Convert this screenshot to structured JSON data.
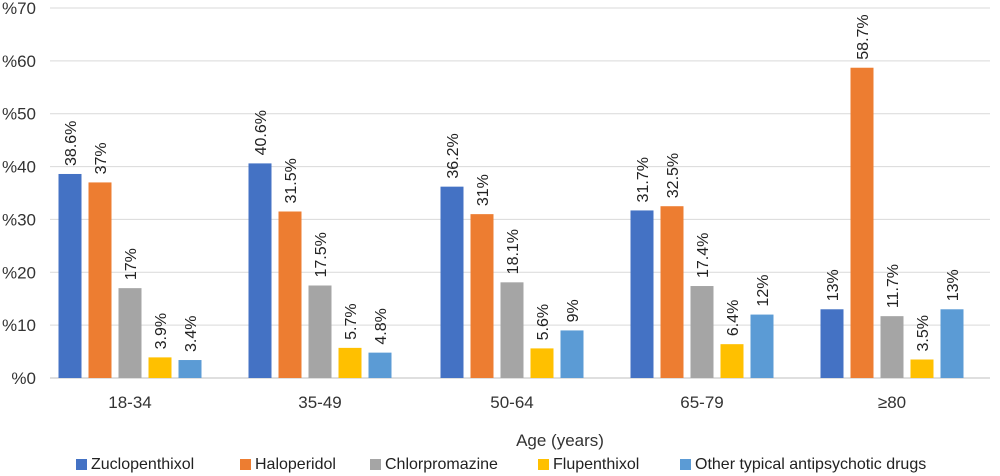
{
  "chart_data": {
    "type": "bar",
    "title": "",
    "xlabel": "Age (years)",
    "ylabel": "",
    "ylim": [
      0,
      70
    ],
    "yticks": [
      "%0",
      "%10",
      "%20",
      "%30",
      "%40",
      "%50",
      "%60",
      "%70"
    ],
    "grid": true,
    "legend_position": "bottom",
    "categories": [
      "18-34",
      "35-49",
      "50-64",
      "65-79",
      "≥80"
    ],
    "series": [
      {
        "name": "Zuclopenthixol",
        "color": "#4472C4",
        "values": [
          38.6,
          40.6,
          36.2,
          31.7,
          13
        ],
        "labels": [
          "38.6%",
          "40.6%",
          "36.2%",
          "31.7%",
          "13%"
        ]
      },
      {
        "name": "Haloperidol",
        "color": "#ED7D31",
        "values": [
          37,
          31.5,
          31,
          32.5,
          58.7
        ],
        "labels": [
          "37%",
          "31.5%",
          "31%",
          "32.5%",
          "58.7%"
        ]
      },
      {
        "name": "Chlorpromazine",
        "color": "#A5A5A5",
        "values": [
          17,
          17.5,
          18.1,
          17.4,
          11.7
        ],
        "labels": [
          "17%",
          "17.5%",
          "18.1%",
          "17.4%",
          "11.7%"
        ]
      },
      {
        "name": "Flupenthixol",
        "color": "#FFC000",
        "values": [
          3.9,
          5.7,
          5.6,
          6.4,
          3.5
        ],
        "labels": [
          "3.9%",
          "5.7%",
          "5.6%",
          "6.4%",
          "3.5%"
        ]
      },
      {
        "name": "Other typical antipsychotic drugs",
        "color": "#5B9BD5",
        "values": [
          3.4,
          4.8,
          9,
          12,
          13
        ],
        "labels": [
          "3.4%",
          "4.8%",
          "9%",
          "12%",
          "13%"
        ]
      }
    ]
  }
}
